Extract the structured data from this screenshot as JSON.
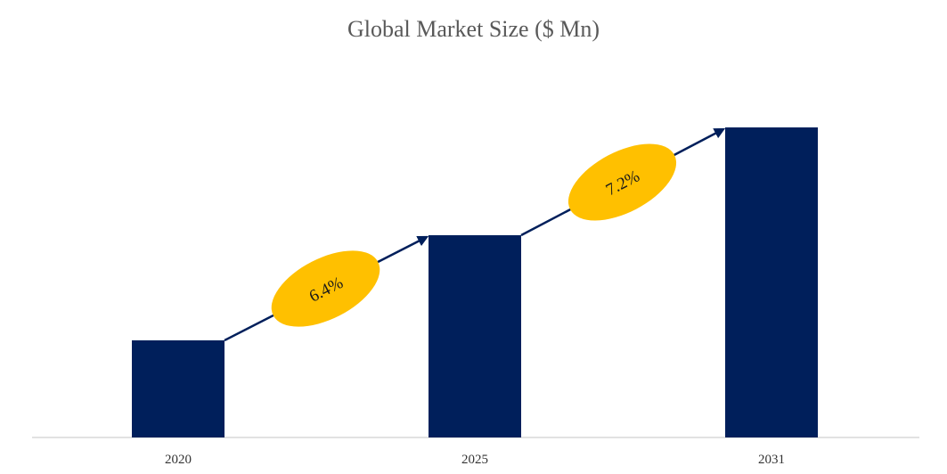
{
  "chart_data": {
    "type": "bar",
    "title": "Global Market Size ($ Mn)",
    "categories": [
      "2020",
      "2025",
      "2031"
    ],
    "values": [
      109,
      227,
      348
    ],
    "ylim": [
      0,
      400
    ],
    "grid": false,
    "legend": "none",
    "annotations": [
      {
        "label": "6.4%",
        "from": "2020",
        "to": "2025"
      },
      {
        "label": "7.2%",
        "from": "2025",
        "to": "2031"
      }
    ],
    "colors": {
      "bar": "#001f5b",
      "arrow": "#001f5b",
      "badge": "#ffc000",
      "axis": "#d9d9d9"
    }
  }
}
